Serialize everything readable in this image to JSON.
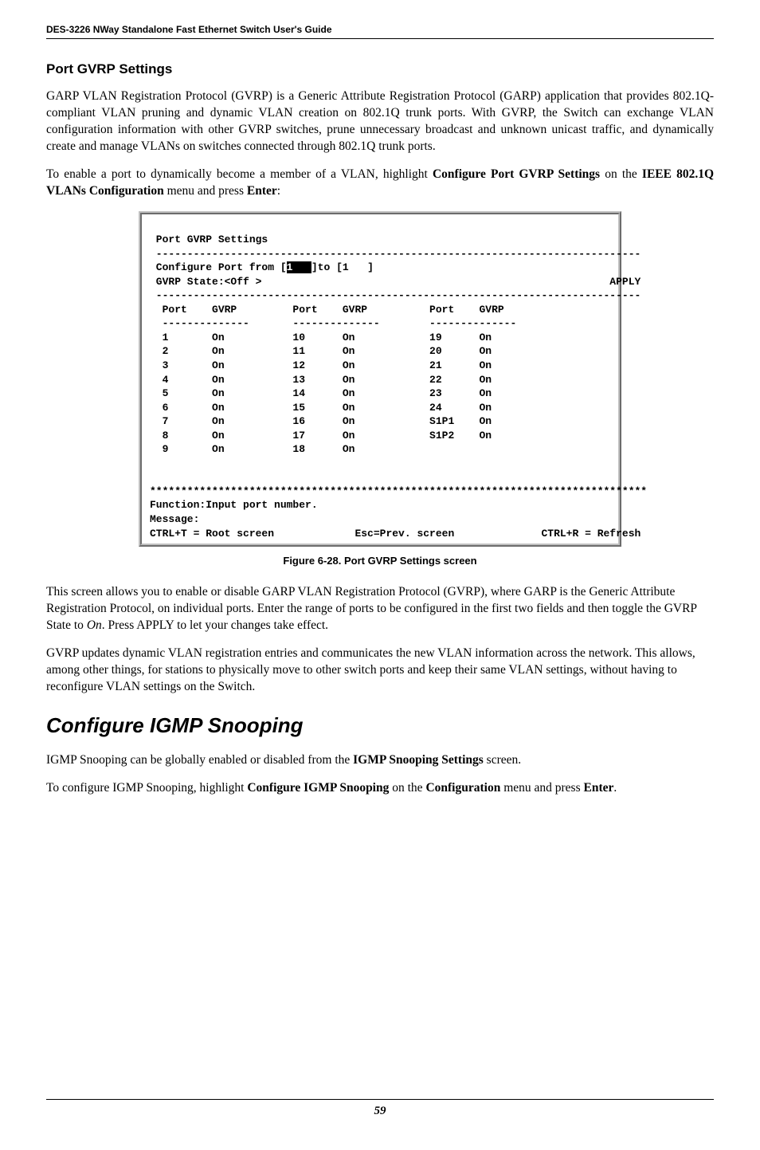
{
  "header": {
    "title": "DES-3226 NWay Standalone Fast Ethernet Switch User's Guide"
  },
  "section1": {
    "heading": "Port GVRP Settings",
    "para1": "GARP VLAN Registration Protocol (GVRP) is a Generic Attribute Registration Protocol (GARP) application that provides 802.1Q-compliant VLAN pruning and dynamic VLAN creation on 802.1Q trunk ports. With GVRP, the Switch can exchange VLAN configuration information with other GVRP switches, prune unnecessary broadcast and unknown unicast traffic, and dynamically create and manage VLANs on switches connected through 802.1Q trunk ports.",
    "para2_prefix": "To enable a port to dynamically become a member of a VLAN, highlight ",
    "para2_bold1": "Configure Port GVRP Settings",
    "para2_mid": " on the ",
    "para2_bold2": "IEEE 802.1Q VLANs Configuration",
    "para2_suffix": " menu and press ",
    "para2_bold3": "Enter",
    "para2_end": ":"
  },
  "terminal": {
    "title": " Port GVRP Settings",
    "hr_top": " ------------------------------------------------------------------------------",
    "cfg_prefix": " Configure Port from [",
    "cfg_inv": "1   ",
    "cfg_suffix": "]to [1   ]",
    "state_line": " GVRP State:<Off >                                                        APPLY",
    "hr_mid": " ------------------------------------------------------------------------------",
    "col_header": "  Port    GVRP         Port    GVRP          Port    GVRP",
    "col_dash": "  --------------       --------------        --------------",
    "rows": [
      "  1       On           10      On            19      On",
      "  2       On           11      On            20      On",
      "  3       On           12      On            21      On",
      "  4       On           13      On            22      On",
      "  5       On           14      On            23      On",
      "  6       On           15      On            24      On",
      "  7       On           16      On            S1P1    On",
      "  8       On           17      On            S1P2    On",
      "  9       On           18      On"
    ],
    "stars": "********************************************************************************",
    "fn_line": "Function:Input port number.",
    "msg_line": "Message:",
    "bottom_line": "CTRL+T = Root screen             Esc=Prev. screen              CTRL+R = Refresh"
  },
  "caption": {
    "text": "Figure 6-28.  Port GVRP Settings screen"
  },
  "para3": "This screen allows you to enable or disable GARP VLAN Registration Protocol (GVRP), where GARP is the Generic Attribute Registration Protocol, on individual ports. Enter the range of ports to be configured in the first two fields and then toggle the GVRP State to ",
  "para3_italic": "On",
  "para3_suffix": ". Press APPLY to let your changes take effect.",
  "para4": "GVRP updates dynamic VLAN registration entries and communicates the new VLAN information across the network. This allows, among other things, for stations to physically move to other switch ports and keep their same VLAN settings, without having to reconfigure VLAN settings on the Switch.",
  "section2": {
    "heading": "Configure IGMP Snooping",
    "para1_prefix": "IGMP Snooping can be globally enabled or disabled from the ",
    "para1_bold": "IGMP Snooping Settings",
    "para1_suffix": " screen.",
    "para2_prefix": "To configure IGMP Snooping, highlight ",
    "para2_bold1": "Configure IGMP Snooping",
    "para2_mid": " on the ",
    "para2_bold2": "Configuration",
    "para2_suffix": " menu and press ",
    "para2_bold3": "Enter",
    "para2_end": "."
  },
  "footer": {
    "page": "59"
  }
}
